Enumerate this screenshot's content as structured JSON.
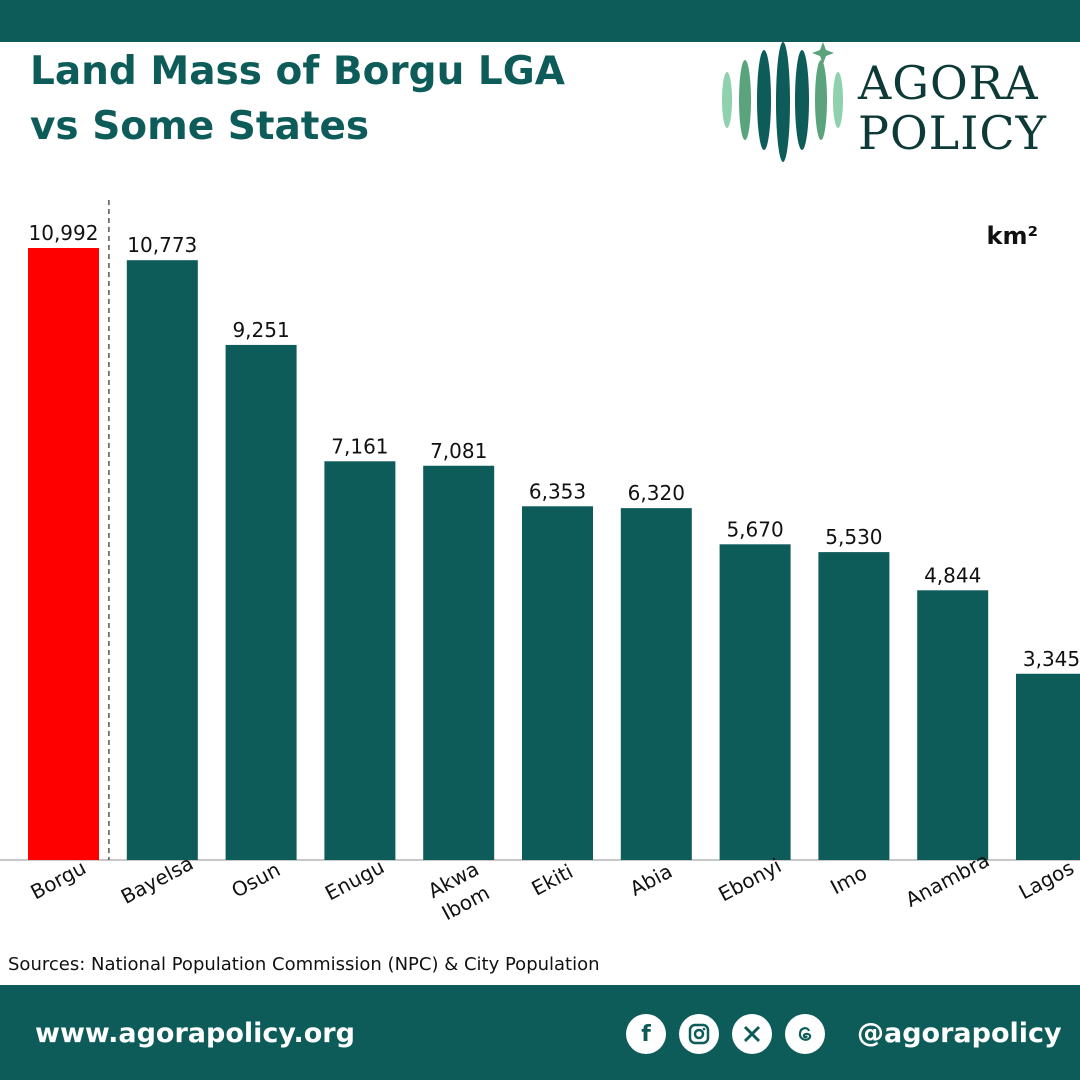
{
  "header": {
    "title_line1": "Land Mass of Borgu LGA",
    "title_line2": "vs Some States",
    "logo_line1": "AGORA",
    "logo_line2": "POLICY"
  },
  "chart_data": {
    "type": "bar",
    "title": "Land Mass of Borgu LGA vs Some States",
    "unit": "km²",
    "categories": [
      "Borgu",
      "Bayelsa",
      "Osun",
      "Enugu",
      "Akwa Ibom",
      "Ekiti",
      "Abia",
      "Ebonyi",
      "Imo",
      "Anambra",
      "Lagos"
    ],
    "values": [
      10992,
      10773,
      9251,
      7161,
      7081,
      6353,
      6320,
      5670,
      5530,
      4844,
      3345
    ],
    "value_labels": [
      "10,992",
      "10,773",
      "9,251",
      "7,161",
      "7,081",
      "6,353",
      "6,320",
      "5,670",
      "5,530",
      "4,844",
      "3,345"
    ],
    "ylim": [
      0,
      10992
    ],
    "grid": false,
    "colors": {
      "highlight": "#ff0000",
      "bars": "#0e5c5a"
    }
  },
  "source": "Sources: National Population Commission (NPC) & City Population",
  "footer": {
    "website": "www.agorapolicy.org",
    "handle": "@agorapolicy",
    "social_icons": [
      "facebook-icon",
      "instagram-icon",
      "x-icon",
      "threads-icon"
    ]
  }
}
